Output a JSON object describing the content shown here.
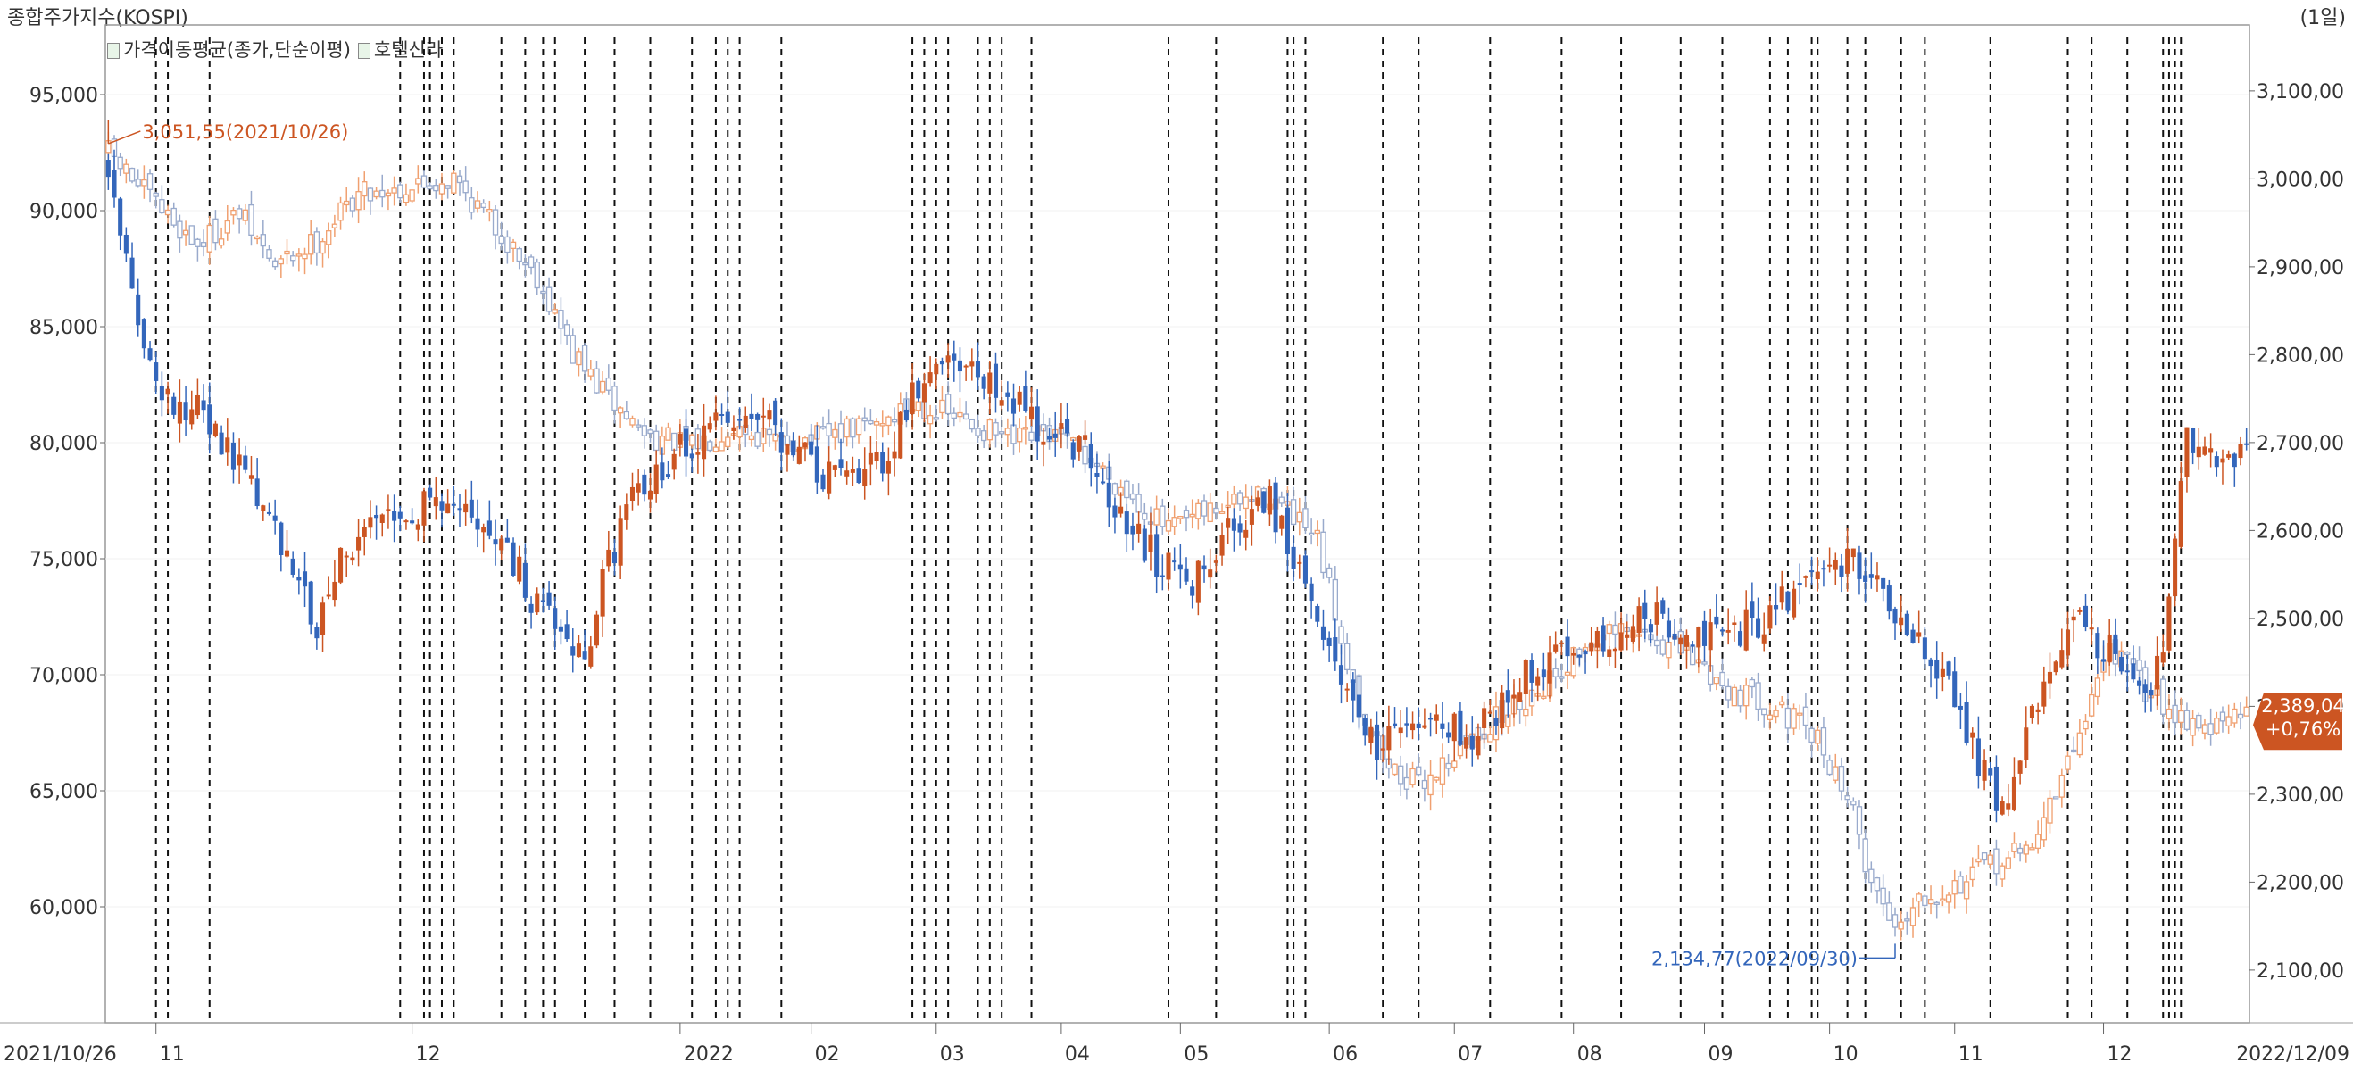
{
  "title": "종합주가지수(KOSPI)",
  "period": "(1일)",
  "legend": [
    "가격이동평균(종가,단순이평)",
    "호텔신라"
  ],
  "chart_data": {
    "type": "candlestick",
    "title": "종합주가지수(KOSPI)",
    "period": "(1일)",
    "series_names": [
      "가격이동평균(종가,단순이평)",
      "호텔신라"
    ],
    "left_axis": {
      "label": "",
      "range": [
        55000,
        98000
      ],
      "ticks": [
        60000,
        65000,
        70000,
        75000,
        80000,
        85000,
        90000,
        95000
      ],
      "tick_labels": [
        "60,000",
        "65,000",
        "70,000",
        "75,000",
        "80,000",
        "85,000",
        "90,000",
        "95,000"
      ]
    },
    "right_axis": {
      "label": "",
      "range": [
        2040,
        3175
      ],
      "ticks": [
        2100,
        2200,
        2300,
        2400,
        2500,
        2600,
        2700,
        2800,
        2900,
        3000,
        3100
      ],
      "tick_labels": [
        "2,100,00",
        "2,200,00",
        "2,300,00",
        "2,400,00",
        "2,500,00",
        "2,600,00",
        "2,700,00",
        "2,800,00",
        "2,900,00",
        "3,000,00",
        "3,100,00"
      ]
    },
    "x_start": "2021/10/26",
    "x_end": "2022/12/09",
    "month_labels": [
      "11",
      "12",
      "2022",
      "02",
      "03",
      "04",
      "05",
      "06",
      "07",
      "08",
      "09",
      "10",
      "11",
      "12"
    ],
    "annotations": {
      "high": "3,051,55(2021/10/26)",
      "low": "2,134,77(2022/09/30)",
      "last_price": "2,389,04",
      "last_change": "+0,76%"
    },
    "colors": {
      "up": "#cc5522",
      "down": "#3366bb",
      "kospi_up": "#f0a070",
      "kospi_down": "#99aacc",
      "last_box": "#cc5522"
    },
    "hotel_shilla_close_anchors": [
      [
        0,
        92000
      ],
      [
        8,
        82000
      ],
      [
        15,
        81500
      ],
      [
        25,
        78000
      ],
      [
        35,
        72000
      ],
      [
        40,
        75500
      ],
      [
        50,
        77000
      ],
      [
        58,
        78000
      ],
      [
        65,
        76000
      ],
      [
        72,
        73000
      ],
      [
        80,
        71000
      ],
      [
        84,
        75000
      ],
      [
        90,
        78500
      ],
      [
        100,
        80500
      ],
      [
        110,
        81000
      ],
      [
        120,
        78500
      ],
      [
        130,
        79000
      ],
      [
        138,
        83500
      ],
      [
        145,
        83000
      ],
      [
        155,
        81000
      ],
      [
        165,
        79500
      ],
      [
        170,
        76500
      ],
      [
        176,
        75000
      ],
      [
        182,
        74000
      ],
      [
        188,
        76500
      ],
      [
        195,
        77500
      ],
      [
        202,
        73000
      ],
      [
        207,
        70000
      ],
      [
        213,
        67000
      ],
      [
        220,
        68000
      ],
      [
        230,
        67500
      ],
      [
        240,
        70500
      ],
      [
        250,
        71500
      ],
      [
        260,
        72500
      ],
      [
        270,
        71500
      ],
      [
        278,
        72500
      ],
      [
        285,
        74000
      ],
      [
        292,
        75000
      ],
      [
        300,
        73000
      ],
      [
        308,
        70000
      ],
      [
        313,
        67000
      ],
      [
        318,
        64000
      ],
      [
        325,
        70000
      ],
      [
        330,
        72500
      ],
      [
        336,
        71000
      ],
      [
        340,
        69000
      ],
      [
        345,
        70500
      ],
      [
        349,
        80000
      ],
      [
        353,
        79000
      ],
      [
        358,
        79200
      ]
    ],
    "kospi_close_anchors": [
      [
        0,
        3030
      ],
      [
        8,
        2970
      ],
      [
        15,
        2925
      ],
      [
        22,
        2960
      ],
      [
        28,
        2900
      ],
      [
        35,
        2930
      ],
      [
        42,
        2985
      ],
      [
        50,
        2990
      ],
      [
        58,
        3000
      ],
      [
        65,
        2945
      ],
      [
        72,
        2890
      ],
      [
        78,
        2800
      ],
      [
        84,
        2750
      ],
      [
        90,
        2710
      ],
      [
        98,
        2695
      ],
      [
        105,
        2720
      ],
      [
        112,
        2700
      ],
      [
        120,
        2705
      ],
      [
        128,
        2720
      ],
      [
        136,
        2745
      ],
      [
        145,
        2720
      ],
      [
        152,
        2700
      ],
      [
        158,
        2710
      ],
      [
        165,
        2680
      ],
      [
        170,
        2650
      ],
      [
        178,
        2600
      ],
      [
        186,
        2625
      ],
      [
        195,
        2640
      ],
      [
        203,
        2585
      ],
      [
        210,
        2400
      ],
      [
        215,
        2330
      ],
      [
        220,
        2310
      ],
      [
        225,
        2340
      ],
      [
        232,
        2380
      ],
      [
        240,
        2420
      ],
      [
        250,
        2480
      ],
      [
        258,
        2480
      ],
      [
        265,
        2460
      ],
      [
        272,
        2420
      ],
      [
        280,
        2400
      ],
      [
        287,
        2360
      ],
      [
        292,
        2300
      ],
      [
        296,
        2200
      ],
      [
        300,
        2150
      ],
      [
        304,
        2185
      ],
      [
        310,
        2195
      ],
      [
        316,
        2220
      ],
      [
        322,
        2235
      ],
      [
        328,
        2315
      ],
      [
        336,
        2470
      ],
      [
        342,
        2420
      ],
      [
        348,
        2390
      ],
      [
        353,
        2375
      ],
      [
        358,
        2389
      ]
    ],
    "event_line_indices": [
      8,
      10,
      17,
      49,
      53,
      54,
      56,
      58,
      66,
      70,
      73,
      75,
      80,
      85,
      91,
      98,
      102,
      104,
      106,
      113,
      135,
      137,
      139,
      141,
      146,
      148,
      150,
      155,
      178,
      186,
      198,
      199,
      201,
      214,
      220,
      232,
      244,
      254,
      264,
      271,
      279,
      282,
      286,
      287,
      292,
      295,
      301,
      305,
      316,
      329,
      333,
      339,
      345,
      346,
      347,
      348
    ]
  }
}
